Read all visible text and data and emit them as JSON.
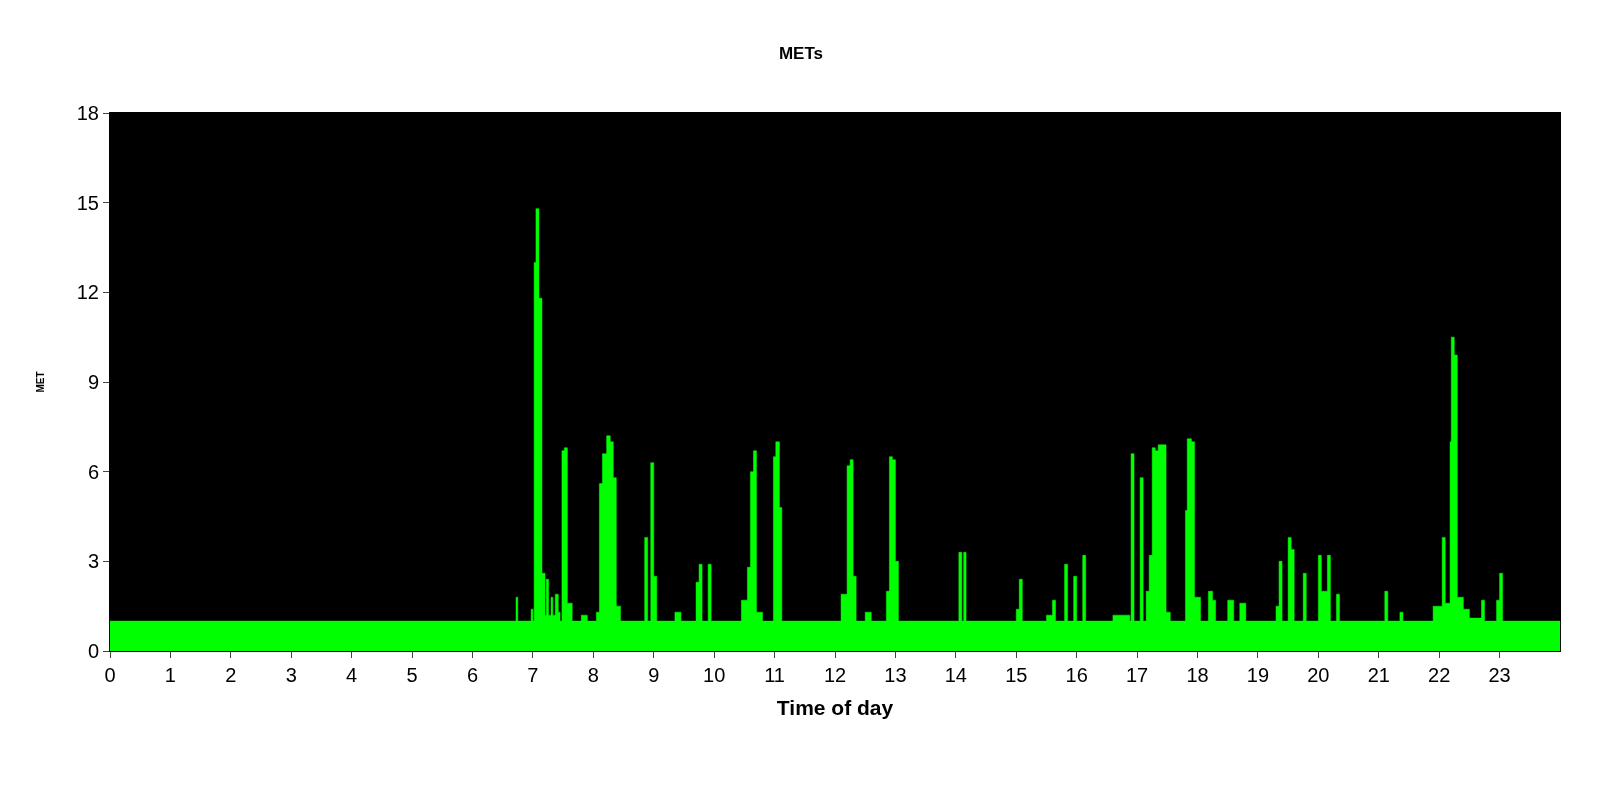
{
  "chart_data": {
    "type": "area",
    "title": "METs",
    "xlabel": "Time of day",
    "ylabel": "MET",
    "x": [
      0,
      6.7,
      6.72,
      6.75,
      6.85,
      6.95,
      6.97,
      7.0,
      7.02,
      7.05,
      7.1,
      7.15,
      7.2,
      7.22,
      7.26,
      7.3,
      7.33,
      7.37,
      7.42,
      7.45,
      7.48,
      7.52,
      7.57,
      7.65,
      7.8,
      7.9,
      8.05,
      8.1,
      8.15,
      8.22,
      8.28,
      8.33,
      8.38,
      8.45,
      8.8,
      8.85,
      8.9,
      8.95,
      9.0,
      9.05,
      9.3,
      9.35,
      9.45,
      9.65,
      9.7,
      9.75,
      9.8,
      9.88,
      9.9,
      9.95,
      10.4,
      10.45,
      10.55,
      10.6,
      10.65,
      10.7,
      10.8,
      10.95,
      10.98,
      11.02,
      11.08,
      11.12,
      12.05,
      12.1,
      12.2,
      12.25,
      12.3,
      12.35,
      12.5,
      12.6,
      12.8,
      12.85,
      12.9,
      12.95,
      13.0,
      13.05,
      14.02,
      14.05,
      14.1,
      14.13,
      14.17,
      14.95,
      15.0,
      15.05,
      15.1,
      15.5,
      15.6,
      15.65,
      15.78,
      15.8,
      15.85,
      15.93,
      15.95,
      16.0,
      16.08,
      16.1,
      16.15,
      16.6,
      16.8,
      16.88,
      16.9,
      16.95,
      17.03,
      17.05,
      17.1,
      17.15,
      17.2,
      17.25,
      17.3,
      17.35,
      17.42,
      17.48,
      17.55,
      17.75,
      17.8,
      17.83,
      17.9,
      17.95,
      18.0,
      18.05,
      18.15,
      18.18,
      18.25,
      18.3,
      18.5,
      18.6,
      18.7,
      18.8,
      19.25,
      19.3,
      19.35,
      19.4,
      19.48,
      19.5,
      19.55,
      19.6,
      19.73,
      19.75,
      19.8,
      19.98,
      20.0,
      20.05,
      20.15,
      20.2,
      20.3,
      20.35,
      21.08,
      21.1,
      21.15,
      21.35,
      21.4,
      21.85,
      21.9,
      22.0,
      22.05,
      22.1,
      22.18,
      22.2,
      22.25,
      22.3,
      22.4,
      22.5,
      22.7,
      22.75,
      22.93,
      22.95,
      23.0,
      23.05,
      24
    ],
    "values": [
      1,
      1,
      1.8,
      1,
      1,
      1,
      1.4,
      1,
      13.0,
      14.8,
      11.8,
      2.6,
      1.2,
      2.4,
      1.2,
      1.8,
      1.2,
      1.9,
      1.3,
      1,
      6.7,
      6.8,
      1.6,
      1,
      1.2,
      1,
      1.3,
      5.6,
      6.6,
      7.2,
      7.0,
      5.8,
      1.5,
      1,
      1,
      3.8,
      1,
      6.3,
      2.5,
      1,
      1,
      1.3,
      1,
      1,
      2.3,
      2.9,
      1,
      1,
      2.9,
      1,
      1,
      1.7,
      2.8,
      6.0,
      6.7,
      1.3,
      1,
      1,
      6.5,
      7.0,
      4.8,
      1,
      1,
      1.9,
      6.2,
      6.4,
      2.5,
      1,
      1.3,
      1,
      1,
      2.0,
      6.5,
      6.4,
      3.0,
      1,
      1,
      3.3,
      1,
      3.3,
      1,
      1,
      1.4,
      2.4,
      1,
      1.2,
      1.7,
      1,
      1,
      2.9,
      1,
      1,
      2.5,
      1,
      1,
      3.2,
      1,
      1.2,
      1.2,
      1,
      6.6,
      1,
      1,
      5.8,
      1,
      2.0,
      3.2,
      6.8,
      6.7,
      6.9,
      6.9,
      1.3,
      1,
      1,
      4.7,
      7.1,
      7.0,
      1.8,
      1.8,
      1,
      1,
      2.0,
      1.7,
      1,
      1.7,
      1,
      1.6,
      1,
      1,
      1.5,
      3.0,
      1,
      1,
      3.8,
      3.4,
      1,
      1,
      2.6,
      1,
      1,
      3.2,
      2.0,
      3.2,
      1,
      1.9,
      1,
      1,
      2.0,
      1,
      1.3,
      1,
      1,
      1.5,
      1.5,
      3.8,
      1.6,
      7.0,
      10.5,
      9.9,
      1.8,
      1.4,
      1.1,
      1.7,
      1,
      1,
      1.7,
      2.6,
      1,
      1
    ],
    "color": "#00ff00",
    "xlim": [
      0,
      24
    ],
    "xticks": [
      0,
      1,
      2,
      3,
      4,
      5,
      6,
      7,
      8,
      9,
      10,
      11,
      12,
      13,
      14,
      15,
      16,
      17,
      18,
      19,
      20,
      21,
      22,
      23
    ],
    "ylim": [
      0,
      18
    ],
    "yticks": [
      0,
      3,
      6,
      9,
      12,
      15,
      18
    ],
    "grid": false
  }
}
